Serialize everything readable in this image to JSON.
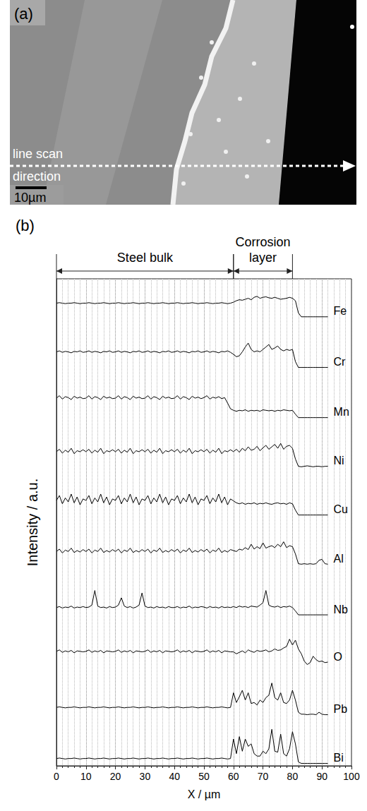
{
  "image_panel": {
    "label": "(a)",
    "annotation": "line scan direction",
    "scale_bar": "10µm"
  },
  "chart_data": {
    "type": "line",
    "panel_label": "(b)",
    "xlabel": "X / µm",
    "ylabel": "Intensity / a.u.",
    "xlim": [
      0,
      100
    ],
    "xticks": [
      0,
      10,
      20,
      30,
      40,
      50,
      60,
      70,
      80,
      90,
      100
    ],
    "ylim": [
      0,
      1
    ],
    "tick_labels": "x",
    "grid": true,
    "annotations": [
      {
        "text": "Steel bulk",
        "x_range": [
          0,
          60
        ]
      },
      {
        "text": "Corrosion layer",
        "x_range": [
          60,
          80
        ]
      }
    ],
    "x": [
      0,
      1,
      2,
      3,
      4,
      5,
      6,
      7,
      8,
      9,
      10,
      11,
      12,
      13,
      14,
      15,
      16,
      17,
      18,
      19,
      20,
      21,
      22,
      23,
      24,
      25,
      26,
      27,
      28,
      29,
      30,
      31,
      32,
      33,
      34,
      35,
      36,
      37,
      38,
      39,
      40,
      41,
      42,
      43,
      44,
      45,
      46,
      47,
      48,
      49,
      50,
      51,
      52,
      53,
      54,
      55,
      56,
      57,
      58,
      59,
      60,
      61,
      62,
      63,
      64,
      65,
      66,
      67,
      68,
      69,
      70,
      71,
      72,
      73,
      74,
      75,
      76,
      77,
      78,
      79,
      80,
      81,
      82,
      83,
      84,
      85,
      86,
      87,
      88,
      89,
      90,
      91,
      92
    ],
    "series": [
      {
        "name": "Fe",
        "color": "#000000",
        "values": [
          0.5,
          0.51,
          0.5,
          0.49,
          0.5,
          0.5,
          0.51,
          0.5,
          0.49,
          0.5,
          0.5,
          0.51,
          0.5,
          0.49,
          0.5,
          0.5,
          0.51,
          0.5,
          0.49,
          0.5,
          0.5,
          0.51,
          0.5,
          0.49,
          0.5,
          0.5,
          0.51,
          0.5,
          0.49,
          0.5,
          0.5,
          0.51,
          0.5,
          0.49,
          0.5,
          0.5,
          0.51,
          0.5,
          0.49,
          0.5,
          0.5,
          0.51,
          0.5,
          0.49,
          0.5,
          0.5,
          0.51,
          0.5,
          0.49,
          0.5,
          0.5,
          0.51,
          0.5,
          0.49,
          0.5,
          0.5,
          0.51,
          0.5,
          0.49,
          0.5,
          0.52,
          0.55,
          0.57,
          0.56,
          0.58,
          0.6,
          0.57,
          0.62,
          0.64,
          0.6,
          0.62,
          0.63,
          0.61,
          0.6,
          0.62,
          0.6,
          0.58,
          0.59,
          0.6,
          0.62,
          0.6,
          0.55,
          0.3,
          0.22,
          0.22,
          0.22,
          0.22,
          0.22,
          0.22,
          0.22,
          0.22,
          0.22,
          0.22
        ]
      },
      {
        "name": "Cr",
        "color": "#000000",
        "values": [
          0.5,
          0.52,
          0.49,
          0.51,
          0.5,
          0.48,
          0.51,
          0.5,
          0.52,
          0.49,
          0.5,
          0.52,
          0.49,
          0.51,
          0.5,
          0.48,
          0.51,
          0.5,
          0.52,
          0.49,
          0.5,
          0.52,
          0.49,
          0.51,
          0.5,
          0.48,
          0.51,
          0.5,
          0.52,
          0.49,
          0.5,
          0.52,
          0.49,
          0.51,
          0.5,
          0.48,
          0.51,
          0.5,
          0.52,
          0.49,
          0.5,
          0.52,
          0.49,
          0.51,
          0.5,
          0.48,
          0.51,
          0.5,
          0.52,
          0.49,
          0.5,
          0.52,
          0.49,
          0.51,
          0.5,
          0.48,
          0.51,
          0.5,
          0.52,
          0.49,
          0.45,
          0.4,
          0.42,
          0.5,
          0.6,
          0.68,
          0.55,
          0.5,
          0.52,
          0.5,
          0.55,
          0.6,
          0.65,
          0.55,
          0.58,
          0.62,
          0.55,
          0.52,
          0.55,
          0.53,
          0.55,
          0.3,
          0.18,
          0.18,
          0.18,
          0.18,
          0.18,
          0.18,
          0.18,
          0.18,
          0.18,
          0.18,
          0.18
        ]
      },
      {
        "name": "Mn",
        "color": "#000000",
        "values": [
          0.55,
          0.6,
          0.53,
          0.58,
          0.56,
          0.52,
          0.59,
          0.55,
          0.57,
          0.54,
          0.55,
          0.6,
          0.53,
          0.58,
          0.56,
          0.52,
          0.59,
          0.55,
          0.57,
          0.54,
          0.55,
          0.6,
          0.53,
          0.58,
          0.56,
          0.52,
          0.59,
          0.55,
          0.57,
          0.54,
          0.55,
          0.6,
          0.53,
          0.58,
          0.56,
          0.52,
          0.59,
          0.55,
          0.57,
          0.54,
          0.55,
          0.6,
          0.53,
          0.58,
          0.56,
          0.52,
          0.59,
          0.55,
          0.57,
          0.54,
          0.56,
          0.6,
          0.53,
          0.57,
          0.55,
          0.58,
          0.54,
          0.56,
          0.45,
          0.33,
          0.3,
          0.28,
          0.3,
          0.29,
          0.31,
          0.28,
          0.3,
          0.29,
          0.3,
          0.28,
          0.31,
          0.3,
          0.29,
          0.3,
          0.28,
          0.3,
          0.29,
          0.31,
          0.3,
          0.29,
          0.3,
          0.22,
          0.15,
          0.15,
          0.15,
          0.15,
          0.15,
          0.15,
          0.15,
          0.15,
          0.15,
          0.15,
          0.15
        ]
      },
      {
        "name": "Ni",
        "color": "#000000",
        "values": [
          0.45,
          0.5,
          0.42,
          0.48,
          0.44,
          0.52,
          0.41,
          0.47,
          0.45,
          0.49,
          0.45,
          0.5,
          0.42,
          0.48,
          0.44,
          0.52,
          0.41,
          0.47,
          0.45,
          0.49,
          0.45,
          0.5,
          0.42,
          0.48,
          0.44,
          0.52,
          0.41,
          0.47,
          0.45,
          0.49,
          0.45,
          0.5,
          0.42,
          0.48,
          0.44,
          0.52,
          0.41,
          0.47,
          0.45,
          0.49,
          0.45,
          0.5,
          0.42,
          0.48,
          0.44,
          0.52,
          0.41,
          0.47,
          0.45,
          0.49,
          0.45,
          0.5,
          0.42,
          0.48,
          0.44,
          0.52,
          0.41,
          0.47,
          0.45,
          0.49,
          0.45,
          0.5,
          0.44,
          0.52,
          0.47,
          0.55,
          0.48,
          0.5,
          0.56,
          0.47,
          0.53,
          0.58,
          0.5,
          0.55,
          0.6,
          0.52,
          0.62,
          0.5,
          0.56,
          0.58,
          0.52,
          0.3,
          0.15,
          0.14,
          0.15,
          0.16,
          0.15,
          0.14,
          0.15,
          0.15,
          0.14,
          0.15,
          0.15
        ]
      },
      {
        "name": "Cu",
        "color": "#000000",
        "values": [
          0.45,
          0.55,
          0.38,
          0.5,
          0.42,
          0.58,
          0.4,
          0.52,
          0.36,
          0.48,
          0.45,
          0.55,
          0.38,
          0.5,
          0.42,
          0.58,
          0.4,
          0.52,
          0.36,
          0.48,
          0.45,
          0.55,
          0.38,
          0.5,
          0.42,
          0.58,
          0.4,
          0.52,
          0.36,
          0.48,
          0.45,
          0.55,
          0.38,
          0.5,
          0.42,
          0.58,
          0.4,
          0.52,
          0.36,
          0.48,
          0.45,
          0.55,
          0.38,
          0.5,
          0.42,
          0.58,
          0.4,
          0.52,
          0.36,
          0.48,
          0.45,
          0.55,
          0.38,
          0.5,
          0.42,
          0.58,
          0.4,
          0.52,
          0.36,
          0.48,
          0.44,
          0.4,
          0.38,
          0.4,
          0.37,
          0.39,
          0.38,
          0.4,
          0.37,
          0.39,
          0.38,
          0.4,
          0.38,
          0.37,
          0.39,
          0.4,
          0.38,
          0.39,
          0.37,
          0.4,
          0.38,
          0.25,
          0.15,
          0.15,
          0.15,
          0.15,
          0.15,
          0.15,
          0.15,
          0.15,
          0.15,
          0.15,
          0.15
        ]
      },
      {
        "name": "Al",
        "color": "#000000",
        "values": [
          0.4,
          0.45,
          0.37,
          0.43,
          0.4,
          0.47,
          0.38,
          0.42,
          0.39,
          0.44,
          0.4,
          0.45,
          0.37,
          0.43,
          0.4,
          0.47,
          0.38,
          0.42,
          0.39,
          0.44,
          0.4,
          0.45,
          0.37,
          0.43,
          0.4,
          0.47,
          0.38,
          0.42,
          0.39,
          0.44,
          0.4,
          0.45,
          0.37,
          0.43,
          0.4,
          0.47,
          0.38,
          0.42,
          0.39,
          0.44,
          0.4,
          0.45,
          0.37,
          0.43,
          0.4,
          0.47,
          0.38,
          0.42,
          0.39,
          0.44,
          0.4,
          0.45,
          0.37,
          0.43,
          0.4,
          0.47,
          0.38,
          0.42,
          0.39,
          0.44,
          0.42,
          0.4,
          0.45,
          0.43,
          0.48,
          0.44,
          0.55,
          0.45,
          0.5,
          0.46,
          0.58,
          0.47,
          0.5,
          0.52,
          0.48,
          0.55,
          0.5,
          0.6,
          0.48,
          0.52,
          0.5,
          0.35,
          0.15,
          0.14,
          0.15,
          0.14,
          0.15,
          0.14,
          0.15,
          0.22,
          0.24,
          0.15,
          0.14
        ]
      },
      {
        "name": "Nb",
        "color": "#000000",
        "values": [
          0.25,
          0.27,
          0.24,
          0.26,
          0.25,
          0.28,
          0.24,
          0.26,
          0.25,
          0.27,
          0.25,
          0.26,
          0.3,
          0.6,
          0.28,
          0.25,
          0.26,
          0.24,
          0.27,
          0.25,
          0.26,
          0.3,
          0.45,
          0.28,
          0.25,
          0.27,
          0.24,
          0.26,
          0.3,
          0.55,
          0.28,
          0.25,
          0.26,
          0.24,
          0.27,
          0.25,
          0.26,
          0.24,
          0.27,
          0.25,
          0.25,
          0.27,
          0.24,
          0.26,
          0.25,
          0.28,
          0.24,
          0.26,
          0.25,
          0.27,
          0.26,
          0.24,
          0.27,
          0.25,
          0.26,
          0.24,
          0.27,
          0.25,
          0.26,
          0.25,
          0.27,
          0.25,
          0.28,
          0.26,
          0.27,
          0.25,
          0.28,
          0.27,
          0.26,
          0.3,
          0.35,
          0.6,
          0.3,
          0.27,
          0.26,
          0.28,
          0.25,
          0.27,
          0.26,
          0.28,
          0.25,
          0.18,
          0.1,
          0.1,
          0.1,
          0.1,
          0.1,
          0.1,
          0.1,
          0.1,
          0.1,
          0.1,
          0.1
        ]
      },
      {
        "name": "O",
        "color": "#000000",
        "values": [
          0.35,
          0.38,
          0.33,
          0.36,
          0.34,
          0.37,
          0.32,
          0.36,
          0.35,
          0.34,
          0.35,
          0.38,
          0.33,
          0.36,
          0.34,
          0.37,
          0.32,
          0.36,
          0.35,
          0.34,
          0.35,
          0.38,
          0.33,
          0.36,
          0.34,
          0.37,
          0.32,
          0.36,
          0.35,
          0.34,
          0.35,
          0.38,
          0.33,
          0.36,
          0.34,
          0.37,
          0.32,
          0.36,
          0.35,
          0.34,
          0.35,
          0.38,
          0.33,
          0.36,
          0.34,
          0.37,
          0.32,
          0.36,
          0.35,
          0.34,
          0.35,
          0.38,
          0.33,
          0.36,
          0.34,
          0.37,
          0.32,
          0.36,
          0.35,
          0.34,
          0.34,
          0.3,
          0.33,
          0.36,
          0.32,
          0.38,
          0.35,
          0.33,
          0.37,
          0.35,
          0.36,
          0.38,
          0.34,
          0.36,
          0.4,
          0.37,
          0.38,
          0.42,
          0.45,
          0.6,
          0.48,
          0.58,
          0.4,
          0.3,
          0.15,
          0.08,
          0.12,
          0.25,
          0.18,
          0.14,
          0.15,
          0.12,
          0.13
        ]
      },
      {
        "name": "Pb",
        "color": "#000000",
        "values": [
          0.2,
          0.21,
          0.2,
          0.19,
          0.2,
          0.2,
          0.21,
          0.2,
          0.19,
          0.2,
          0.2,
          0.21,
          0.2,
          0.19,
          0.2,
          0.2,
          0.21,
          0.2,
          0.19,
          0.2,
          0.2,
          0.21,
          0.2,
          0.19,
          0.2,
          0.2,
          0.21,
          0.2,
          0.19,
          0.2,
          0.2,
          0.21,
          0.2,
          0.19,
          0.2,
          0.2,
          0.21,
          0.2,
          0.19,
          0.2,
          0.2,
          0.21,
          0.2,
          0.19,
          0.2,
          0.2,
          0.21,
          0.2,
          0.19,
          0.2,
          0.2,
          0.21,
          0.2,
          0.19,
          0.2,
          0.2,
          0.21,
          0.2,
          0.19,
          0.2,
          0.5,
          0.3,
          0.42,
          0.55,
          0.35,
          0.5,
          0.28,
          0.3,
          0.25,
          0.35,
          0.3,
          0.4,
          0.45,
          0.7,
          0.4,
          0.35,
          0.5,
          0.3,
          0.28,
          0.35,
          0.55,
          0.35,
          0.1,
          0.06,
          0.06,
          0.05,
          0.06,
          0.06,
          0.05,
          0.1,
          0.06,
          0.05,
          0.05
        ]
      },
      {
        "name": "Bi",
        "color": "#000000",
        "values": [
          0.15,
          0.16,
          0.15,
          0.14,
          0.15,
          0.15,
          0.16,
          0.15,
          0.14,
          0.15,
          0.15,
          0.16,
          0.15,
          0.14,
          0.15,
          0.15,
          0.16,
          0.15,
          0.14,
          0.15,
          0.15,
          0.16,
          0.15,
          0.14,
          0.15,
          0.15,
          0.16,
          0.15,
          0.14,
          0.15,
          0.15,
          0.16,
          0.15,
          0.14,
          0.15,
          0.15,
          0.16,
          0.15,
          0.14,
          0.15,
          0.15,
          0.16,
          0.15,
          0.14,
          0.15,
          0.15,
          0.16,
          0.15,
          0.14,
          0.15,
          0.15,
          0.16,
          0.15,
          0.14,
          0.15,
          0.15,
          0.16,
          0.15,
          0.14,
          0.15,
          0.55,
          0.25,
          0.6,
          0.3,
          0.55,
          0.4,
          0.45,
          0.25,
          0.2,
          0.2,
          0.3,
          0.25,
          0.35,
          0.75,
          0.3,
          0.28,
          0.65,
          0.25,
          0.2,
          0.35,
          0.7,
          0.45,
          0.08,
          0.05,
          0.05,
          0.05,
          0.05,
          0.05,
          0.05,
          0.05,
          0.05,
          0.05,
          0.05
        ]
      }
    ]
  }
}
